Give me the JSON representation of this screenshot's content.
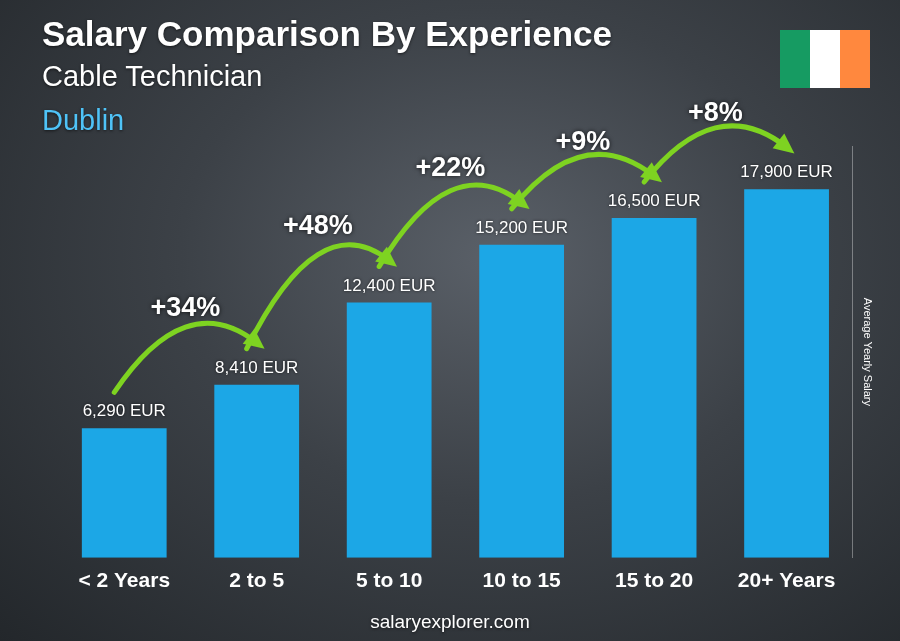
{
  "chart_data": {
    "type": "bar",
    "title": "Salary Comparison By Experience",
    "subtitle": "Cable Technician",
    "location": "Dublin",
    "y_label": "Average Yearly Salary",
    "source": "salaryexplorer.com",
    "categories": [
      "< 2 Years",
      "2 to 5",
      "5 to 10",
      "10 to 15",
      "15 to 20",
      "20+ Years"
    ],
    "values": [
      6290,
      8410,
      12400,
      15200,
      16500,
      17900
    ],
    "value_labels": [
      "6,290 EUR",
      "8,410 EUR",
      "12,400 EUR",
      "15,200 EUR",
      "16,500 EUR",
      "17,900 EUR"
    ],
    "annotations": [
      "+34%",
      "+48%",
      "+22%",
      "+9%",
      "+8%"
    ],
    "color": "#1ca7e6",
    "ylim": [
      0,
      20000
    ],
    "grid": false,
    "data_labels": true,
    "tick_labels": "x"
  }
}
